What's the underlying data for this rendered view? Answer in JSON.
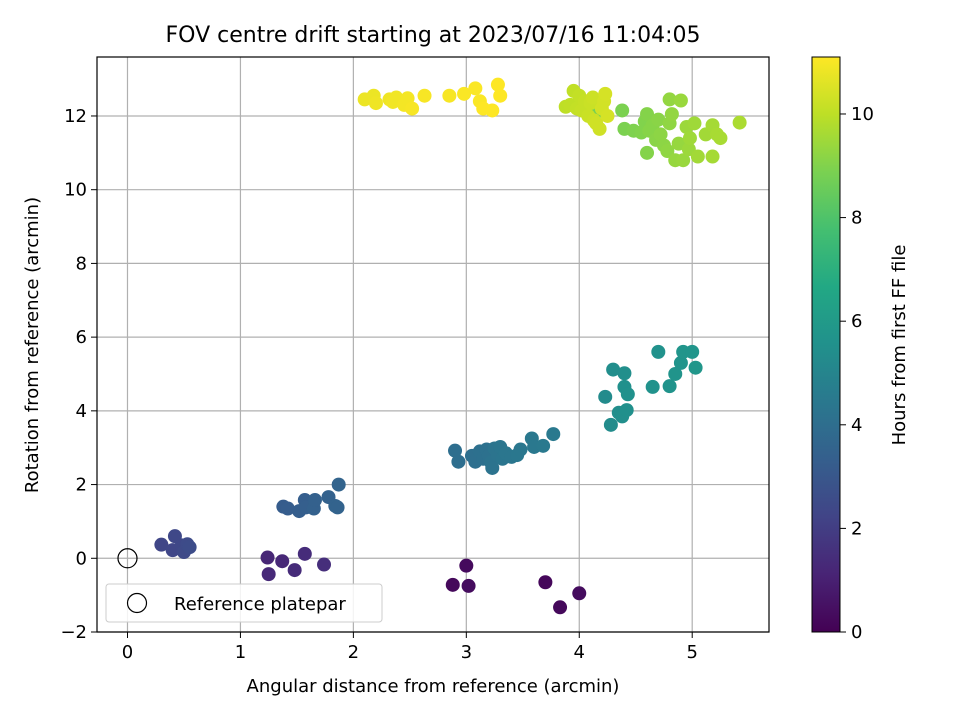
{
  "chart_data": {
    "type": "scatter",
    "title": "FOV centre drift starting at 2023/07/16 11:04:05",
    "xlabel": "Angular distance from reference (arcmin)",
    "ylabel": "Rotation from reference (arcmin)",
    "xlim": [
      -0.27,
      5.68
    ],
    "ylim": [
      -2.0,
      13.6
    ],
    "xticks": [
      0,
      1,
      2,
      3,
      4,
      5
    ],
    "yticks": [
      -2,
      0,
      2,
      4,
      6,
      8,
      10,
      12
    ],
    "grid": true,
    "legend": {
      "placement": "lower-left",
      "entries": [
        "Reference platepar"
      ]
    },
    "reference_point": {
      "x": 0,
      "y": 0
    },
    "colorbar": {
      "label": "Hours from first FF file",
      "range": [
        0,
        11.1
      ],
      "ticks": [
        0,
        2,
        4,
        6,
        8,
        10
      ],
      "colormap": "viridis"
    },
    "series": [
      {
        "points": [
          [
            2.88,
            -0.72,
            0.25
          ],
          [
            3.0,
            -0.2,
            0.3
          ],
          [
            3.02,
            -0.75,
            0.35
          ],
          [
            3.7,
            -0.65,
            0.2
          ],
          [
            3.83,
            -1.33,
            0.25
          ],
          [
            4.0,
            -0.95,
            0.35
          ],
          [
            1.24,
            0.02,
            1.2
          ],
          [
            1.37,
            -0.08,
            1.25
          ],
          [
            1.25,
            -0.43,
            1.3
          ],
          [
            1.48,
            -0.32,
            1.35
          ],
          [
            1.57,
            0.12,
            1.4
          ],
          [
            1.74,
            -0.17,
            1.45
          ],
          [
            0.3,
            0.37,
            2.3
          ],
          [
            0.4,
            0.22,
            2.35
          ],
          [
            0.42,
            0.6,
            2.4
          ],
          [
            0.48,
            0.35,
            2.4
          ],
          [
            0.5,
            0.17,
            2.45
          ],
          [
            0.53,
            0.38,
            2.5
          ],
          [
            0.55,
            0.3,
            2.55
          ],
          [
            1.38,
            1.4,
            3.2
          ],
          [
            1.42,
            1.35,
            3.25
          ],
          [
            1.52,
            1.28,
            3.3
          ],
          [
            1.57,
            1.58,
            3.3
          ],
          [
            1.58,
            1.38,
            3.35
          ],
          [
            1.65,
            1.35,
            3.4
          ],
          [
            1.66,
            1.58,
            3.4
          ],
          [
            1.78,
            1.66,
            3.45
          ],
          [
            1.84,
            1.42,
            3.5
          ],
          [
            1.86,
            1.38,
            3.5
          ],
          [
            1.87,
            2.0,
            3.55
          ],
          [
            2.9,
            2.92,
            4.0
          ],
          [
            2.93,
            2.62,
            4.0
          ],
          [
            3.05,
            2.78,
            4.05
          ],
          [
            3.08,
            2.62,
            4.05
          ],
          [
            3.12,
            2.9,
            4.1
          ],
          [
            3.15,
            2.7,
            4.1
          ],
          [
            3.18,
            2.95,
            4.15
          ],
          [
            3.2,
            2.78,
            4.15
          ],
          [
            3.22,
            2.6,
            4.2
          ],
          [
            3.23,
            2.45,
            4.2
          ],
          [
            3.25,
            2.98,
            4.25
          ],
          [
            3.28,
            2.8,
            4.25
          ],
          [
            3.3,
            3.02,
            4.3
          ],
          [
            3.32,
            2.7,
            4.3
          ],
          [
            3.35,
            2.85,
            4.35
          ],
          [
            3.4,
            2.75,
            4.35
          ],
          [
            3.45,
            2.8,
            4.4
          ],
          [
            3.48,
            2.95,
            4.4
          ],
          [
            3.58,
            3.25,
            4.45
          ],
          [
            3.6,
            3.02,
            4.45
          ],
          [
            3.68,
            3.05,
            4.5
          ],
          [
            3.77,
            3.37,
            4.5
          ],
          [
            4.23,
            4.38,
            5.3
          ],
          [
            4.28,
            3.62,
            5.35
          ],
          [
            4.3,
            5.12,
            5.4
          ],
          [
            4.35,
            3.95,
            5.4
          ],
          [
            4.38,
            3.85,
            5.45
          ],
          [
            4.4,
            5.02,
            5.45
          ],
          [
            4.4,
            4.65,
            5.5
          ],
          [
            4.42,
            4.02,
            5.5
          ],
          [
            4.43,
            4.45,
            5.55
          ],
          [
            4.65,
            4.65,
            5.6
          ],
          [
            4.7,
            5.6,
            5.6
          ],
          [
            4.8,
            4.67,
            5.65
          ],
          [
            4.85,
            5.0,
            5.7
          ],
          [
            4.9,
            5.3,
            5.7
          ],
          [
            4.92,
            5.6,
            5.75
          ],
          [
            5.0,
            5.6,
            5.75
          ],
          [
            5.03,
            5.17,
            5.8
          ],
          [
            4.15,
            12.1,
            8.8
          ],
          [
            4.38,
            12.15,
            8.9
          ],
          [
            4.4,
            11.65,
            8.9
          ],
          [
            4.48,
            11.6,
            8.95
          ],
          [
            4.55,
            11.55,
            9.0
          ],
          [
            4.58,
            11.85,
            9.0
          ],
          [
            4.6,
            12.05,
            9.05
          ],
          [
            4.6,
            11.0,
            9.05
          ],
          [
            4.62,
            11.6,
            9.1
          ],
          [
            4.65,
            11.75,
            9.1
          ],
          [
            4.68,
            11.35,
            9.15
          ],
          [
            4.7,
            11.9,
            9.15
          ],
          [
            4.72,
            11.5,
            9.2
          ],
          [
            4.75,
            11.2,
            9.2
          ],
          [
            4.78,
            11.05,
            9.25
          ],
          [
            4.8,
            11.8,
            9.25
          ],
          [
            4.8,
            12.45,
            9.3
          ],
          [
            4.82,
            12.05,
            9.3
          ],
          [
            4.85,
            10.8,
            9.35
          ],
          [
            4.88,
            11.25,
            9.35
          ],
          [
            4.9,
            12.42,
            9.4
          ],
          [
            4.92,
            10.8,
            9.4
          ],
          [
            4.95,
            11.7,
            9.45
          ],
          [
            4.97,
            11.1,
            9.45
          ],
          [
            4.98,
            11.4,
            9.5
          ],
          [
            5.02,
            11.8,
            9.5
          ],
          [
            5.05,
            10.9,
            9.55
          ],
          [
            5.12,
            11.5,
            9.55
          ],
          [
            5.18,
            11.75,
            9.6
          ],
          [
            5.18,
            10.9,
            9.6
          ],
          [
            5.22,
            11.5,
            9.65
          ],
          [
            5.25,
            11.4,
            9.65
          ],
          [
            5.42,
            11.82,
            9.7
          ],
          [
            3.88,
            12.25,
            10.0
          ],
          [
            3.92,
            12.3,
            10.05
          ],
          [
            3.95,
            12.68,
            10.05
          ],
          [
            3.98,
            12.2,
            10.1
          ],
          [
            4.0,
            12.55,
            10.1
          ],
          [
            4.02,
            12.15,
            10.15
          ],
          [
            4.05,
            12.4,
            10.15
          ],
          [
            4.08,
            12.0,
            10.2
          ],
          [
            4.1,
            12.35,
            10.2
          ],
          [
            4.12,
            12.5,
            10.25
          ],
          [
            4.13,
            11.88,
            10.25
          ],
          [
            4.15,
            11.8,
            10.3
          ],
          [
            4.18,
            11.65,
            10.3
          ],
          [
            4.2,
            12.2,
            10.35
          ],
          [
            4.22,
            12.4,
            10.35
          ],
          [
            4.23,
            12.6,
            10.4
          ],
          [
            4.25,
            12.0,
            10.4
          ],
          [
            2.1,
            12.45,
            10.8
          ],
          [
            2.18,
            12.55,
            10.8
          ],
          [
            2.2,
            12.35,
            10.85
          ],
          [
            2.32,
            12.45,
            10.85
          ],
          [
            2.35,
            12.38,
            10.9
          ],
          [
            2.38,
            12.5,
            10.9
          ],
          [
            2.45,
            12.3,
            10.95
          ],
          [
            2.48,
            12.48,
            10.95
          ],
          [
            2.52,
            12.2,
            11.0
          ],
          [
            2.63,
            12.55,
            11.0
          ],
          [
            2.85,
            12.55,
            11.0
          ],
          [
            2.98,
            12.6,
            11.05
          ],
          [
            3.08,
            12.75,
            11.05
          ],
          [
            3.12,
            12.4,
            11.05
          ],
          [
            3.15,
            12.2,
            11.1
          ],
          [
            3.23,
            12.15,
            11.1
          ],
          [
            3.28,
            12.85,
            11.1
          ],
          [
            3.3,
            12.55,
            11.1
          ]
        ]
      }
    ]
  }
}
